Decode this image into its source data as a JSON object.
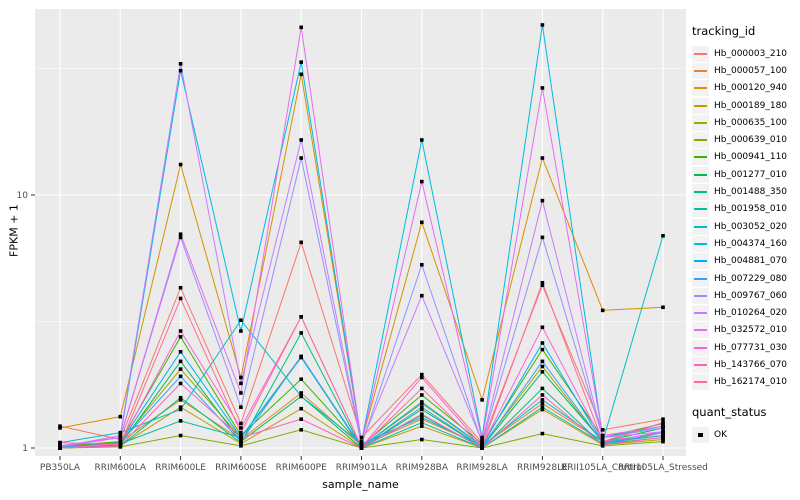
{
  "figure": {
    "background": "#FFFFFF",
    "panel_background": "#EBEBEB",
    "grid_major_color": "#FFFFFF",
    "grid_minor_color": "#FFFFFF",
    "axis_text_color": "#4D4D4D",
    "tick_color": "#333333",
    "point_color": "#000000"
  },
  "chart_data": {
    "type": "line",
    "title": "",
    "xlabel": "sample_name",
    "ylabel": "FPKM + 1",
    "y_scale": "log10",
    "y_ticks": [
      1,
      10
    ],
    "y_tick_labels": [
      "1",
      "10"
    ],
    "y_minor_breaks": [
      3.1623,
      31.623
    ],
    "ylim": [
      0.93,
      57
    ],
    "grid": true,
    "legend_position": "right",
    "point_shape": "filled-square",
    "categories": [
      "PB350LA",
      "RRIM600LA",
      "RRIM600LE",
      "RRIM600SE",
      "RRIM600PE",
      "RRIM901LA",
      "RRIM928BA",
      "RRIM928LA",
      "RRIM928LE",
      "RRII105LA_Control",
      "RRII105LA_Stressed"
    ],
    "series": [
      {
        "name": "Hb_000003_210",
        "color": "#F8766D",
        "values": [
          1.22,
          1.08,
          4.3,
          1.25,
          6.5,
          1.1,
          1.95,
          1.05,
          4.4,
          1.18,
          1.3
        ]
      },
      {
        "name": "Hb_000057_100",
        "color": "#EA8331",
        "values": [
          1.02,
          1.06,
          1.55,
          1.08,
          1.65,
          1.02,
          1.3,
          1.02,
          1.5,
          1.06,
          1.12
        ]
      },
      {
        "name": "Hb_000120_940",
        "color": "#D89000",
        "values": [
          1.2,
          1.33,
          13.2,
          1.9,
          30.0,
          1.06,
          7.8,
          1.55,
          14.0,
          3.5,
          3.6
        ]
      },
      {
        "name": "Hb_000189_180",
        "color": "#C09B00",
        "values": [
          1.0,
          1.02,
          1.45,
          1.04,
          1.43,
          1.0,
          1.22,
          1.0,
          1.42,
          1.03,
          1.08
        ]
      },
      {
        "name": "Hb_000635_100",
        "color": "#A3A500",
        "values": [
          1.01,
          1.05,
          2.05,
          1.1,
          2.3,
          1.01,
          1.5,
          1.02,
          2.1,
          1.05,
          1.12
        ]
      },
      {
        "name": "Hb_000639_010",
        "color": "#7CAE00",
        "values": [
          1.0,
          1.01,
          1.12,
          1.02,
          1.18,
          1.0,
          1.08,
          1.0,
          1.14,
          1.02,
          1.06
        ]
      },
      {
        "name": "Hb_000941_110",
        "color": "#39B600",
        "values": [
          1.01,
          1.06,
          2.75,
          1.12,
          1.87,
          1.02,
          1.62,
          1.04,
          2.45,
          1.1,
          1.25
        ]
      },
      {
        "name": "Hb_001277_010",
        "color": "#00BB4E",
        "values": [
          1.0,
          1.03,
          2.2,
          1.06,
          1.6,
          1.0,
          1.42,
          1.01,
          2.0,
          1.06,
          1.2
        ]
      },
      {
        "name": "Hb_001488_350",
        "color": "#00BF7D",
        "values": [
          1.0,
          1.02,
          1.58,
          1.05,
          2.85,
          1.0,
          1.35,
          1.0,
          1.72,
          1.03,
          1.15
        ]
      },
      {
        "name": "Hb_001958_010",
        "color": "#00C1A3",
        "values": [
          1.01,
          1.04,
          1.28,
          1.1,
          2.28,
          1.0,
          1.26,
          1.0,
          1.45,
          1.04,
          1.1
        ]
      },
      {
        "name": "Hb_003052_020",
        "color": "#00BFC4",
        "values": [
          1.05,
          1.15,
          1.42,
          3.2,
          1.6,
          1.04,
          1.32,
          1.02,
          1.55,
          1.06,
          6.9
        ]
      },
      {
        "name": "Hb_004374_160",
        "color": "#00BAE0",
        "values": [
          1.02,
          1.1,
          31.0,
          2.9,
          33.5,
          1.06,
          16.5,
          1.1,
          47.0,
          1.1,
          1.22
        ]
      },
      {
        "name": "Hb_004881_070",
        "color": "#00B0F6",
        "values": [
          1.0,
          1.05,
          2.4,
          1.1,
          2.28,
          1.01,
          1.52,
          1.02,
          2.6,
          1.05,
          1.16
        ]
      },
      {
        "name": "Hb_007229_080",
        "color": "#35A2FF",
        "values": [
          1.0,
          1.05,
          1.92,
          1.06,
          2.3,
          1.0,
          1.45,
          1.01,
          2.2,
          1.05,
          1.12
        ]
      },
      {
        "name": "Hb_009767_060",
        "color": "#9590FF",
        "values": [
          1.01,
          1.1,
          6.8,
          1.45,
          14.0,
          1.03,
          5.3,
          1.05,
          6.8,
          1.1,
          1.2
        ]
      },
      {
        "name": "Hb_010264_020",
        "color": "#C77CFF",
        "values": [
          1.01,
          1.12,
          33.0,
          1.8,
          16.5,
          1.05,
          4.0,
          1.06,
          9.5,
          1.1,
          1.16
        ]
      },
      {
        "name": "Hb_032572_010",
        "color": "#E76BF3",
        "values": [
          1.02,
          1.1,
          7.0,
          1.65,
          46.0,
          1.05,
          11.3,
          1.08,
          26.5,
          1.12,
          1.22
        ]
      },
      {
        "name": "Hb_077731_030",
        "color": "#FA62DB",
        "values": [
          1.0,
          1.04,
          2.9,
          1.2,
          3.3,
          1.01,
          1.9,
          1.02,
          3.0,
          1.06,
          1.15
        ]
      },
      {
        "name": "Hb_143766_070",
        "color": "#FF62BC",
        "values": [
          1.0,
          1.02,
          1.8,
          1.1,
          1.3,
          1.0,
          1.36,
          1.0,
          1.62,
          1.03,
          1.1
        ]
      },
      {
        "name": "Hb_162174_010",
        "color": "#FF6A98",
        "values": [
          1.05,
          1.03,
          3.9,
          1.15,
          3.3,
          1.01,
          1.72,
          1.01,
          4.5,
          1.06,
          1.26
        ]
      }
    ]
  },
  "legend": {
    "tracking_title": "tracking_id",
    "quant_title": "quant_status",
    "quant_items": [
      {
        "label": "OK"
      }
    ]
  }
}
